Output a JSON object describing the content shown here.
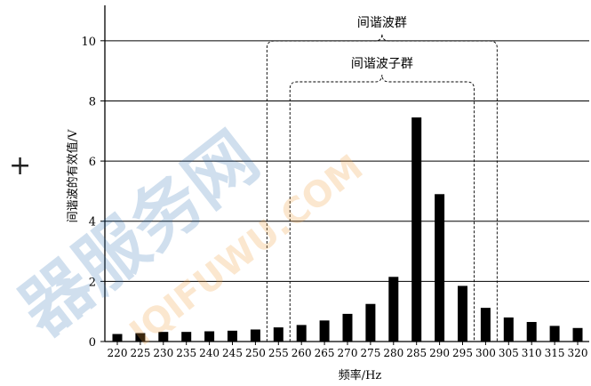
{
  "chart_data": {
    "type": "bar",
    "title": "",
    "xlabel": "频率/Hz",
    "ylabel": "间谐波的有效值/V",
    "ylim": [
      0,
      11
    ],
    "yticks": [
      0,
      2,
      4,
      6,
      8,
      10
    ],
    "categories": [
      "220",
      "225",
      "230",
      "235",
      "240",
      "245",
      "250",
      "255",
      "260",
      "265",
      "270",
      "275",
      "280",
      "285",
      "290",
      "295",
      "300",
      "305",
      "310",
      "315",
      "320"
    ],
    "values": [
      0.25,
      0.28,
      0.32,
      0.32,
      0.34,
      0.36,
      0.4,
      0.47,
      0.55,
      0.7,
      0.92,
      1.25,
      2.15,
      7.45,
      4.9,
      1.85,
      1.12,
      0.8,
      0.65,
      0.52,
      0.45
    ],
    "grid": "horizontal",
    "annotations": [
      {
        "label": "间谐波群",
        "from": "250",
        "to": "300"
      },
      {
        "label": "间谐波子群",
        "from": "255",
        "to": "295"
      }
    ]
  },
  "decor": {
    "plus_mark": "+",
    "watermark_text": "IQIFUWU.COM",
    "watermark_logo": "器服务网"
  }
}
